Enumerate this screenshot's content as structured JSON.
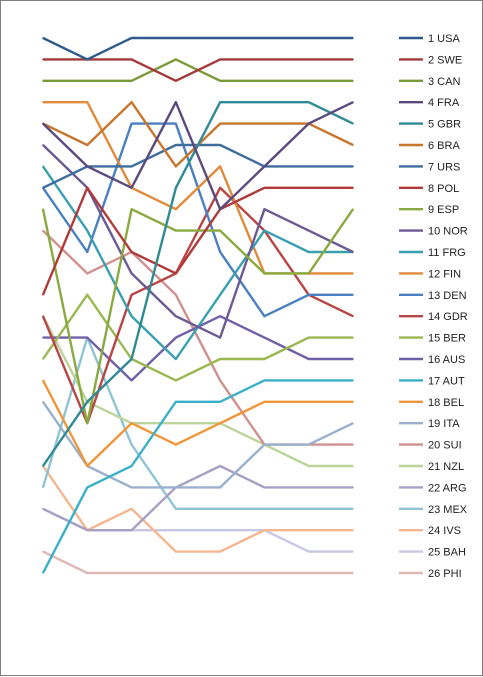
{
  "chart_data": {
    "type": "line",
    "title": "",
    "xlabel": "",
    "ylabel": "",
    "x": [
      1,
      2,
      3,
      4,
      5,
      6,
      7,
      8
    ],
    "ylim": [
      1,
      26
    ],
    "y_inverted": true,
    "grid": false,
    "legend_position": "right",
    "series": [
      {
        "name": "1 USA",
        "color": "#2e5b8c",
        "values": [
          1,
          2,
          1,
          1,
          1,
          1,
          1,
          1
        ]
      },
      {
        "name": "2 SWE",
        "color": "#a33a3a",
        "values": [
          2,
          2,
          2,
          3,
          2,
          2,
          2,
          2
        ]
      },
      {
        "name": "3 CAN",
        "color": "#7a9a3a",
        "values": [
          3,
          3,
          3,
          2,
          3,
          3,
          3,
          3
        ]
      },
      {
        "name": "4 FRA",
        "color": "#5b4a80",
        "values": [
          5,
          7,
          8,
          4,
          9,
          7,
          5,
          4
        ]
      },
      {
        "name": "5 GBR",
        "color": "#2f8a96",
        "values": [
          21,
          18,
          16,
          8,
          4,
          4,
          4,
          5
        ]
      },
      {
        "name": "6 BRA",
        "color": "#c8762e",
        "values": [
          5,
          6,
          4,
          7,
          5,
          5,
          5,
          6
        ]
      },
      {
        "name": "7 URS",
        "color": "#3d6e9e",
        "values": [
          8,
          7,
          7,
          6,
          6,
          7,
          7,
          7
        ]
      },
      {
        "name": "8 POL",
        "color": "#b03a3a",
        "values": [
          13,
          8,
          11,
          12,
          9,
          8,
          8,
          8
        ]
      },
      {
        "name": "9 ESP",
        "color": "#8aaa40",
        "values": [
          9,
          19,
          9,
          10,
          10,
          12,
          12,
          9
        ]
      },
      {
        "name": "10 NOR",
        "color": "#6b5a94",
        "values": [
          6,
          8,
          12,
          14,
          15,
          9,
          10,
          11
        ]
      },
      {
        "name": "11 FRG",
        "color": "#3aa0b0",
        "values": [
          7,
          10,
          14,
          16,
          13,
          10,
          11,
          11
        ]
      },
      {
        "name": "12 FIN",
        "color": "#e08a3a",
        "values": [
          4,
          4,
          8,
          9,
          7,
          12,
          12,
          12
        ]
      },
      {
        "name": "13 DEN",
        "color": "#4a80bf",
        "values": [
          8,
          11,
          5,
          5,
          11,
          14,
          13,
          13
        ]
      },
      {
        "name": "14 GDR",
        "color": "#b84545",
        "values": [
          14,
          19,
          13,
          12,
          8,
          10,
          13,
          14
        ]
      },
      {
        "name": "15 BER",
        "color": "#9ab850",
        "values": [
          16,
          13,
          16,
          17,
          16,
          16,
          15,
          15
        ]
      },
      {
        "name": "16 AUS",
        "color": "#7060a8",
        "values": [
          15,
          15,
          17,
          15,
          14,
          15,
          16,
          16
        ]
      },
      {
        "name": "17 AUT",
        "color": "#3ab0c8",
        "values": [
          26,
          22,
          21,
          18,
          18,
          17,
          17,
          17
        ]
      },
      {
        "name": "18 BEL",
        "color": "#f0963a",
        "values": [
          17,
          21,
          19,
          20,
          19,
          18,
          18,
          18
        ]
      },
      {
        "name": "19 ITA",
        "color": "#9ab0cc",
        "values": [
          18,
          21,
          22,
          22,
          22,
          20,
          20,
          19
        ]
      },
      {
        "name": "20 SUI",
        "color": "#d0908e",
        "values": [
          10,
          12,
          11,
          13,
          17,
          20,
          20,
          20
        ]
      },
      {
        "name": "21 NZL",
        "color": "#bcd49a",
        "values": [
          14,
          18,
          19,
          19,
          19,
          20,
          21,
          21
        ]
      },
      {
        "name": "22 ARG",
        "color": "#a8a0c4",
        "values": [
          23,
          24,
          24,
          22,
          21,
          22,
          22,
          22
        ]
      },
      {
        "name": "23 MEX",
        "color": "#90c4d4",
        "values": [
          22,
          15,
          20,
          23,
          23,
          23,
          23,
          23
        ]
      },
      {
        "name": "24 IVS",
        "color": "#f4b690",
        "values": [
          21,
          24,
          23,
          25,
          25,
          24,
          24,
          24
        ]
      },
      {
        "name": "25 BAH",
        "color": "#c8c8e4",
        "values": [
          23,
          24,
          24,
          24,
          24,
          24,
          25,
          25
        ]
      },
      {
        "name": "26 PHI",
        "color": "#e0b8b8",
        "values": [
          25,
          26,
          26,
          26,
          26,
          26,
          26,
          26
        ]
      }
    ]
  }
}
